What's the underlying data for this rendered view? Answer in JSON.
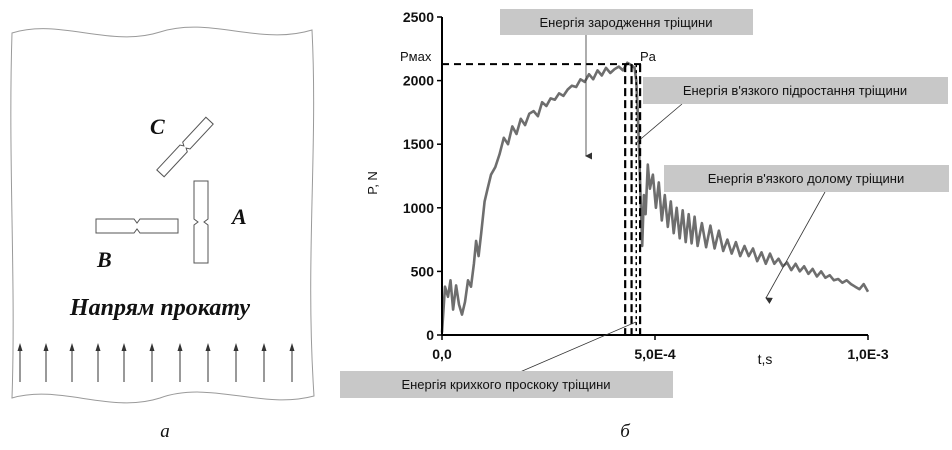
{
  "panel_a": {
    "specimen_labels": {
      "c": "C",
      "a": "A",
      "b": "B"
    },
    "direction_text": "Напрям прокату",
    "caption": "а"
  },
  "panel_b": {
    "caption": "б",
    "pmax_label": "Pмах",
    "pa_label": "Pa",
    "annotations": {
      "initiation": "Енергія зародження тріщини",
      "ductile_growth": "Енергія в'язкого підростання тріщини",
      "ductile_fracture": "Енергія в'язкого долому тріщини",
      "brittle_jump": "Енергія крихкого проскоку тріщини"
    },
    "colors": {
      "curve": "#6e6e6e",
      "label_box": "#c8c8c8",
      "axes": "#000000"
    }
  },
  "chart_data": {
    "type": "line",
    "xlabel": "t,s",
    "ylabel": "P, N",
    "xlim": [
      0,
      0.001
    ],
    "ylim": [
      0,
      2500
    ],
    "x_ticks": [
      {
        "value": 0,
        "label": "0,0"
      },
      {
        "value": 0.0005,
        "label": "5,0E-4"
      },
      {
        "value": 0.001,
        "label": "1,0E-3"
      }
    ],
    "y_ticks": [
      {
        "value": 0,
        "label": "0"
      },
      {
        "value": 500,
        "label": "500"
      },
      {
        "value": 1000,
        "label": "1000"
      },
      {
        "value": 1500,
        "label": "1500"
      },
      {
        "value": 2000,
        "label": "2000"
      },
      {
        "value": 2500,
        "label": "2500"
      }
    ],
    "grid": false,
    "series": [
      {
        "x": [
          0,
          7e-06,
          1.4e-05,
          2e-05,
          2.6e-05,
          3.3e-05,
          4e-05,
          4.7e-05,
          5.4e-05,
          6.1e-05,
          6.8e-05,
          7.5e-05,
          8e-05,
          8.6e-05,
          9.2e-05,
          0.0001,
          0.000107,
          0.000115,
          0.000125,
          0.000135,
          0.000145,
          0.000155,
          0.000165,
          0.000175,
          0.000185,
          0.000195,
          0.000205,
          0.000215,
          0.000225,
          0.000235,
          0.000245,
          0.000255,
          0.000265,
          0.000275,
          0.000285,
          0.000295,
          0.000305,
          0.000315,
          0.000325,
          0.000335,
          0.000345,
          0.000355,
          0.000365,
          0.000375,
          0.000385,
          0.000395,
          0.000405,
          0.000415,
          0.000425,
          0.000435,
          0.000445,
          0.000452,
          0.000456,
          0.00046,
          0.000464,
          0.000467,
          0.00047,
          0.000474,
          0.000478,
          0.000483,
          0.000488,
          0.000495,
          0.000502,
          0.000509,
          0.000516,
          0.000523,
          0.00053,
          0.000537,
          0.000544,
          0.000551,
          0.000558,
          0.000565,
          0.000572,
          0.000579,
          0.000586,
          0.000593,
          0.0006,
          0.00061,
          0.00062,
          0.00063,
          0.00064,
          0.00065,
          0.00066,
          0.00067,
          0.00068,
          0.00069,
          0.0007,
          0.00071,
          0.00072,
          0.00073,
          0.00074,
          0.00075,
          0.00076,
          0.00077,
          0.00078,
          0.00079,
          0.0008,
          0.00081,
          0.00082,
          0.00083,
          0.00084,
          0.00085,
          0.00086,
          0.00087,
          0.00088,
          0.00089,
          0.0009,
          0.00091,
          0.00092,
          0.00093,
          0.00094,
          0.00095,
          0.00096,
          0.00097,
          0.00098,
          0.00099,
          0.001
        ],
        "y": [
          20,
          380,
          300,
          430,
          200,
          390,
          240,
          160,
          260,
          430,
          380,
          560,
          740,
          620,
          800,
          1050,
          1150,
          1260,
          1320,
          1420,
          1550,
          1500,
          1640,
          1580,
          1700,
          1650,
          1740,
          1760,
          1720,
          1830,
          1800,
          1860,
          1850,
          1900,
          1880,
          1930,
          1960,
          1950,
          2010,
          1990,
          2050,
          2010,
          2080,
          2040,
          2100,
          2060,
          2090,
          2110,
          2080,
          2140,
          2120,
          2100,
          2000,
          1700,
          1300,
          1000,
          700,
          1100,
          950,
          1340,
          1150,
          1260,
          1000,
          1200,
          900,
          1100,
          850,
          1050,
          800,
          1000,
          760,
          980,
          730,
          950,
          720,
          930,
          700,
          880,
          690,
          860,
          680,
          820,
          660,
          750,
          640,
          730,
          620,
          700,
          620,
          680,
          580,
          650,
          560,
          640,
          560,
          600,
          540,
          570,
          510,
          560,
          500,
          540,
          480,
          520,
          460,
          500,
          450,
          470,
          430,
          440,
          410,
          430,
          400,
          380,
          360,
          400,
          340
        ]
      }
    ],
    "annotations": {
      "pmax_value": 2130,
      "markers_t": [
        0.00043,
        0.000445,
        0.000456,
        0.000465
      ]
    }
  }
}
